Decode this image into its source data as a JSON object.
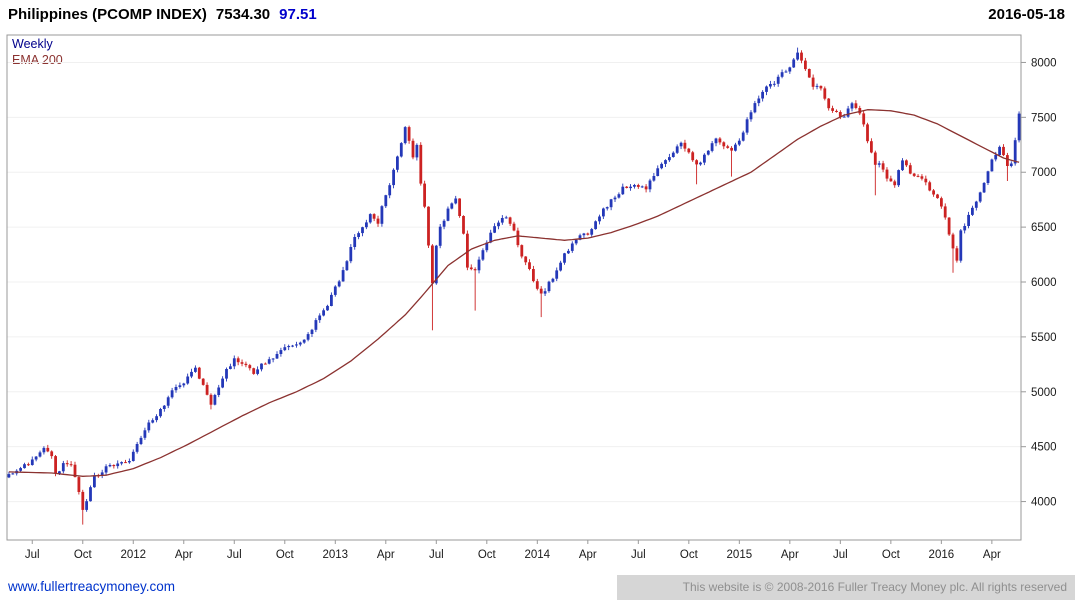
{
  "header": {
    "title": "Philippines (PCOMP INDEX)",
    "last_price": "7534.30",
    "change": "97.51",
    "change_color": "#0000cc",
    "date": "2016-05-18"
  },
  "legend": {
    "timeframe": "Weekly",
    "timeframe_color": "#00008b",
    "overlay": "EMA 200",
    "overlay_color": "#8b3230"
  },
  "footer": {
    "site_link": "www.fullertreacymoney.com",
    "link_color": "#0033cc",
    "copyright": "This website is © 2008-2016 Fuller Treacy Money plc. All rights reserved"
  },
  "chart_data": {
    "type": "candlestick",
    "title": "Philippines (PCOMP INDEX)",
    "instrument": "PCOMP Index",
    "timeframe": "Weekly",
    "overlay": "EMA 200",
    "last_close": 7534.3,
    "change": 97.51,
    "date": "2016-05-18",
    "ylim": [
      3650,
      8250
    ],
    "y_ticks": [
      4000,
      4500,
      5000,
      5500,
      6000,
      6500,
      7000,
      7500,
      8000
    ],
    "weeks_total": 261,
    "x_ticks": [
      {
        "label": "Jul",
        "week": 6
      },
      {
        "label": "Oct",
        "week": 19
      },
      {
        "label": "2012",
        "week": 32
      },
      {
        "label": "Apr",
        "week": 45
      },
      {
        "label": "Jul",
        "week": 58
      },
      {
        "label": "Oct",
        "week": 71
      },
      {
        "label": "2013",
        "week": 84
      },
      {
        "label": "Apr",
        "week": 97
      },
      {
        "label": "Jul",
        "week": 110
      },
      {
        "label": "Oct",
        "week": 123
      },
      {
        "label": "2014",
        "week": 136
      },
      {
        "label": "Apr",
        "week": 149
      },
      {
        "label": "Jul",
        "week": 162
      },
      {
        "label": "Oct",
        "week": 175
      },
      {
        "label": "2015",
        "week": 188
      },
      {
        "label": "Apr",
        "week": 201
      },
      {
        "label": "Jul",
        "week": 214
      },
      {
        "label": "Oct",
        "week": 227
      },
      {
        "label": "2016",
        "week": 240
      },
      {
        "label": "Apr",
        "week": 253
      }
    ],
    "colors": {
      "up": "#2438b8",
      "down": "#cc2222",
      "ema": "#8b3230",
      "grid": "#f0f0f0",
      "border": "#999999",
      "text": "#1a1a1a"
    },
    "close_anchors": [
      [
        0,
        4250
      ],
      [
        3,
        4290
      ],
      [
        6,
        4380
      ],
      [
        9,
        4480
      ],
      [
        11,
        4420
      ],
      [
        12,
        4250
      ],
      [
        14,
        4330
      ],
      [
        16,
        4320
      ],
      [
        18,
        4100
      ],
      [
        19,
        3930
      ],
      [
        20,
        4010
      ],
      [
        22,
        4220
      ],
      [
        25,
        4300
      ],
      [
        29,
        4350
      ],
      [
        31,
        4380
      ],
      [
        32,
        4450
      ],
      [
        34,
        4600
      ],
      [
        37,
        4750
      ],
      [
        40,
        4880
      ],
      [
        43,
        5050
      ],
      [
        46,
        5120
      ],
      [
        48,
        5210
      ],
      [
        50,
        5050
      ],
      [
        52,
        4900
      ],
      [
        54,
        5060
      ],
      [
        56,
        5200
      ],
      [
        58,
        5300
      ],
      [
        61,
        5260
      ],
      [
        63,
        5150
      ],
      [
        65,
        5250
      ],
      [
        68,
        5310
      ],
      [
        71,
        5400
      ],
      [
        74,
        5450
      ],
      [
        77,
        5510
      ],
      [
        79,
        5650
      ],
      [
        82,
        5800
      ],
      [
        84,
        5950
      ],
      [
        86,
        6100
      ],
      [
        89,
        6400
      ],
      [
        91,
        6500
      ],
      [
        93,
        6600
      ],
      [
        95,
        6550
      ],
      [
        97,
        6800
      ],
      [
        99,
        7000
      ],
      [
        101,
        7250
      ],
      [
        102,
        7400
      ],
      [
        103,
        7300
      ],
      [
        104,
        7150
      ],
      [
        105,
        7260
      ],
      [
        106,
        6900
      ],
      [
        107,
        6700
      ],
      [
        108,
        6350
      ],
      [
        109,
        6000
      ],
      [
        110,
        6350
      ],
      [
        111,
        6500
      ],
      [
        113,
        6650
      ],
      [
        115,
        6750
      ],
      [
        116,
        6600
      ],
      [
        117,
        6450
      ],
      [
        118,
        6150
      ],
      [
        120,
        6100
      ],
      [
        122,
        6300
      ],
      [
        124,
        6450
      ],
      [
        126,
        6550
      ],
      [
        128,
        6600
      ],
      [
        130,
        6450
      ],
      [
        132,
        6250
      ],
      [
        134,
        6100
      ],
      [
        136,
        5950
      ],
      [
        137,
        5880
      ],
      [
        140,
        6050
      ],
      [
        143,
        6250
      ],
      [
        146,
        6400
      ],
      [
        149,
        6450
      ],
      [
        152,
        6600
      ],
      [
        155,
        6750
      ],
      [
        158,
        6850
      ],
      [
        161,
        6900
      ],
      [
        164,
        6850
      ],
      [
        167,
        7050
      ],
      [
        170,
        7150
      ],
      [
        173,
        7250
      ],
      [
        175,
        7200
      ],
      [
        177,
        7050
      ],
      [
        179,
        7150
      ],
      [
        182,
        7300
      ],
      [
        184,
        7250
      ],
      [
        186,
        7200
      ],
      [
        188,
        7300
      ],
      [
        191,
        7550
      ],
      [
        194,
        7750
      ],
      [
        197,
        7800
      ],
      [
        199,
        7900
      ],
      [
        201,
        7950
      ],
      [
        203,
        8100
      ],
      [
        205,
        7950
      ],
      [
        207,
        7800
      ],
      [
        209,
        7750
      ],
      [
        211,
        7600
      ],
      [
        213,
        7550
      ],
      [
        215,
        7500
      ],
      [
        217,
        7650
      ],
      [
        219,
        7550
      ],
      [
        221,
        7300
      ],
      [
        223,
        7050
      ],
      [
        224,
        7100
      ],
      [
        226,
        6950
      ],
      [
        228,
        6900
      ],
      [
        230,
        7100
      ],
      [
        232,
        7000
      ],
      [
        234,
        6950
      ],
      [
        236,
        6900
      ],
      [
        238,
        6800
      ],
      [
        240,
        6700
      ],
      [
        242,
        6450
      ],
      [
        243,
        6300
      ],
      [
        244,
        6200
      ],
      [
        245,
        6450
      ],
      [
        247,
        6600
      ],
      [
        249,
        6750
      ],
      [
        251,
        6900
      ],
      [
        253,
        7100
      ],
      [
        255,
        7250
      ],
      [
        256,
        7150
      ],
      [
        257,
        7050
      ],
      [
        258,
        7100
      ],
      [
        259,
        7300
      ],
      [
        260,
        7534.3
      ]
    ],
    "low_spikes": [
      [
        19,
        3790
      ],
      [
        52,
        4840
      ],
      [
        109,
        5560
      ],
      [
        120,
        5740
      ],
      [
        137,
        5680
      ],
      [
        177,
        6890
      ],
      [
        186,
        6960
      ],
      [
        223,
        6790
      ],
      [
        243,
        6084
      ],
      [
        257,
        6920
      ]
    ],
    "high_spikes": [
      [
        102,
        7420
      ],
      [
        203,
        8135
      ],
      [
        260,
        7550
      ]
    ],
    "ema_points": [
      [
        0,
        4270
      ],
      [
        11,
        4260
      ],
      [
        19,
        4230
      ],
      [
        25,
        4240
      ],
      [
        32,
        4300
      ],
      [
        39,
        4400
      ],
      [
        46,
        4520
      ],
      [
        53,
        4650
      ],
      [
        60,
        4780
      ],
      [
        67,
        4900
      ],
      [
        74,
        5000
      ],
      [
        81,
        5120
      ],
      [
        88,
        5280
      ],
      [
        95,
        5480
      ],
      [
        102,
        5700
      ],
      [
        107,
        5900
      ],
      [
        113,
        6150
      ],
      [
        119,
        6300
      ],
      [
        125,
        6380
      ],
      [
        131,
        6420
      ],
      [
        137,
        6400
      ],
      [
        143,
        6380
      ],
      [
        149,
        6400
      ],
      [
        155,
        6450
      ],
      [
        161,
        6520
      ],
      [
        167,
        6600
      ],
      [
        173,
        6700
      ],
      [
        179,
        6800
      ],
      [
        185,
        6900
      ],
      [
        191,
        7000
      ],
      [
        197,
        7150
      ],
      [
        203,
        7300
      ],
      [
        209,
        7420
      ],
      [
        215,
        7520
      ],
      [
        221,
        7570
      ],
      [
        227,
        7560
      ],
      [
        233,
        7520
      ],
      [
        239,
        7440
      ],
      [
        245,
        7330
      ],
      [
        251,
        7220
      ],
      [
        256,
        7130
      ],
      [
        260,
        7090
      ]
    ]
  }
}
